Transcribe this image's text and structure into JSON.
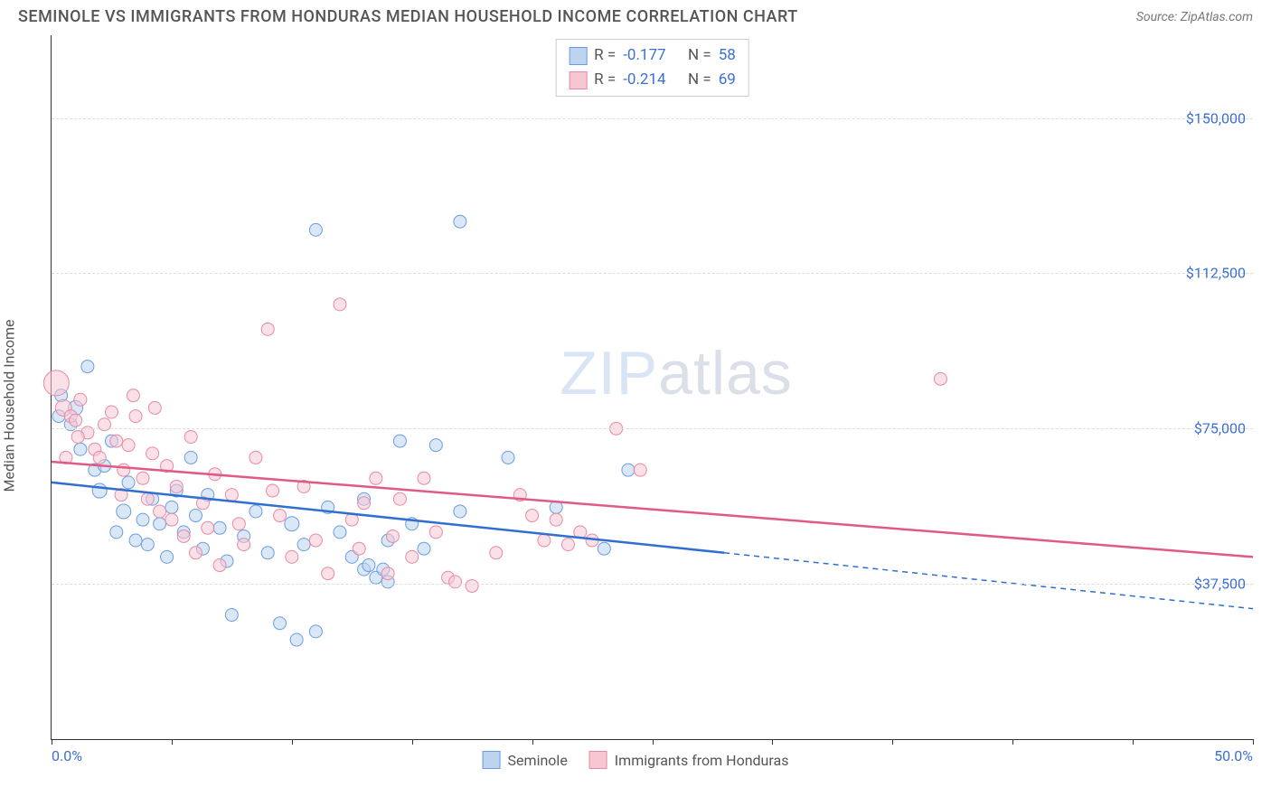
{
  "header": {
    "title": "SEMINOLE VS IMMIGRANTS FROM HONDURAS MEDIAN HOUSEHOLD INCOME CORRELATION CHART",
    "source": "Source: ZipAtlas.com"
  },
  "chart": {
    "type": "scatter",
    "ylabel": "Median Household Income",
    "watermark_a": "ZIP",
    "watermark_b": "atlas",
    "xlim": [
      0,
      50
    ],
    "ylim": [
      0,
      170000
    ],
    "xtick_label_min": "0.0%",
    "xtick_label_max": "50.0%",
    "xtick_positions_pct": [
      0,
      10,
      20,
      30,
      40,
      50,
      60,
      70,
      80,
      90,
      100
    ],
    "ytick_labels": [
      "$37,500",
      "$75,000",
      "$112,500",
      "$150,000"
    ],
    "ytick_values": [
      37500,
      75000,
      112500,
      150000
    ],
    "grid_color": "#dddddd",
    "axis_color": "#333333",
    "label_color": "#3b6fd6",
    "background_color": "#ffffff",
    "stats": [
      {
        "swatch_fill": "#bcd4f0",
        "swatch_stroke": "#6b9de0",
        "r_label": "R =",
        "r": "-0.177",
        "n_label": "N =",
        "n": "58"
      },
      {
        "swatch_fill": "#f6c7d3",
        "swatch_stroke": "#e88aa4",
        "r_label": "R =",
        "r": "-0.214",
        "n_label": "N =",
        "n": "69"
      }
    ],
    "legend": [
      {
        "swatch_fill": "#bcd4f0",
        "swatch_stroke": "#6b9de0",
        "label": "Seminole"
      },
      {
        "swatch_fill": "#f6c7d3",
        "swatch_stroke": "#e88aa4",
        "label": "Immigrants from Honduras"
      }
    ],
    "series": [
      {
        "name": "Seminole",
        "fill": "#bcd4f0",
        "stroke": "#6b9de0",
        "fill_opacity": 0.55,
        "trend_color": "#2f6fd0",
        "trend_width": 2.5,
        "trend_solid": {
          "x1": 0,
          "y1": 62000,
          "x2": 28,
          "y2": 45000
        },
        "trend_dash": {
          "x1": 28,
          "y1": 45000,
          "x2": 50,
          "y2": 31500
        },
        "points": [
          {
            "x": 0.3,
            "y": 78000,
            "r": 7
          },
          {
            "x": 0.4,
            "y": 83000,
            "r": 7
          },
          {
            "x": 0.8,
            "y": 76000,
            "r": 7
          },
          {
            "x": 1.0,
            "y": 80000,
            "r": 8
          },
          {
            "x": 1.2,
            "y": 70000,
            "r": 7
          },
          {
            "x": 1.5,
            "y": 90000,
            "r": 7
          },
          {
            "x": 1.8,
            "y": 65000,
            "r": 7
          },
          {
            "x": 2.0,
            "y": 60000,
            "r": 8
          },
          {
            "x": 2.2,
            "y": 66000,
            "r": 7
          },
          {
            "x": 2.5,
            "y": 72000,
            "r": 7
          },
          {
            "x": 2.7,
            "y": 50000,
            "r": 7
          },
          {
            "x": 3.0,
            "y": 55000,
            "r": 8
          },
          {
            "x": 3.2,
            "y": 62000,
            "r": 7
          },
          {
            "x": 3.5,
            "y": 48000,
            "r": 7
          },
          {
            "x": 3.8,
            "y": 53000,
            "r": 7
          },
          {
            "x": 4.0,
            "y": 47000,
            "r": 7
          },
          {
            "x": 4.2,
            "y": 58000,
            "r": 7
          },
          {
            "x": 4.5,
            "y": 52000,
            "r": 7
          },
          {
            "x": 4.8,
            "y": 44000,
            "r": 7
          },
          {
            "x": 5.0,
            "y": 56000,
            "r": 7
          },
          {
            "x": 5.2,
            "y": 60000,
            "r": 7
          },
          {
            "x": 5.5,
            "y": 50000,
            "r": 7
          },
          {
            "x": 5.8,
            "y": 68000,
            "r": 7
          },
          {
            "x": 6.0,
            "y": 54000,
            "r": 7
          },
          {
            "x": 6.3,
            "y": 46000,
            "r": 7
          },
          {
            "x": 6.5,
            "y": 59000,
            "r": 7
          },
          {
            "x": 7.0,
            "y": 51000,
            "r": 7
          },
          {
            "x": 7.3,
            "y": 43000,
            "r": 7
          },
          {
            "x": 7.5,
            "y": 30000,
            "r": 7
          },
          {
            "x": 8.0,
            "y": 49000,
            "r": 7
          },
          {
            "x": 8.5,
            "y": 55000,
            "r": 7
          },
          {
            "x": 9.0,
            "y": 45000,
            "r": 7
          },
          {
            "x": 9.5,
            "y": 28000,
            "r": 7
          },
          {
            "x": 10.0,
            "y": 52000,
            "r": 8
          },
          {
            "x": 10.2,
            "y": 24000,
            "r": 7
          },
          {
            "x": 10.5,
            "y": 47000,
            "r": 7
          },
          {
            "x": 11.0,
            "y": 123000,
            "r": 7
          },
          {
            "x": 11.0,
            "y": 26000,
            "r": 7
          },
          {
            "x": 11.5,
            "y": 56000,
            "r": 7
          },
          {
            "x": 12.0,
            "y": 50000,
            "r": 7
          },
          {
            "x": 12.5,
            "y": 44000,
            "r": 7
          },
          {
            "x": 13.0,
            "y": 58000,
            "r": 7
          },
          {
            "x": 13.0,
            "y": 41000,
            "r": 7
          },
          {
            "x": 13.2,
            "y": 42000,
            "r": 7
          },
          {
            "x": 13.5,
            "y": 39000,
            "r": 7
          },
          {
            "x": 13.8,
            "y": 41000,
            "r": 7
          },
          {
            "x": 14.0,
            "y": 48000,
            "r": 7
          },
          {
            "x": 14.0,
            "y": 38000,
            "r": 7
          },
          {
            "x": 14.5,
            "y": 72000,
            "r": 7
          },
          {
            "x": 15.0,
            "y": 52000,
            "r": 7
          },
          {
            "x": 15.5,
            "y": 46000,
            "r": 7
          },
          {
            "x": 16.0,
            "y": 71000,
            "r": 7
          },
          {
            "x": 17.0,
            "y": 125000,
            "r": 7
          },
          {
            "x": 17.0,
            "y": 55000,
            "r": 7
          },
          {
            "x": 19.0,
            "y": 68000,
            "r": 7
          },
          {
            "x": 21.0,
            "y": 56000,
            "r": 7
          },
          {
            "x": 23.0,
            "y": 46000,
            "r": 7
          },
          {
            "x": 24.0,
            "y": 65000,
            "r": 7
          }
        ]
      },
      {
        "name": "Immigrants from Honduras",
        "fill": "#f6c7d3",
        "stroke": "#e88aa4",
        "fill_opacity": 0.55,
        "trend_color": "#e05a85",
        "trend_width": 2.5,
        "trend_solid": {
          "x1": 0,
          "y1": 67000,
          "x2": 50,
          "y2": 44000
        },
        "trend_dash": null,
        "points": [
          {
            "x": 0.2,
            "y": 86000,
            "r": 14
          },
          {
            "x": 0.5,
            "y": 80000,
            "r": 9
          },
          {
            "x": 0.8,
            "y": 78000,
            "r": 7
          },
          {
            "x": 1.0,
            "y": 77000,
            "r": 7
          },
          {
            "x": 1.2,
            "y": 82000,
            "r": 7
          },
          {
            "x": 1.5,
            "y": 74000,
            "r": 7
          },
          {
            "x": 1.8,
            "y": 70000,
            "r": 7
          },
          {
            "x": 2.0,
            "y": 68000,
            "r": 7
          },
          {
            "x": 2.2,
            "y": 76000,
            "r": 7
          },
          {
            "x": 2.5,
            "y": 79000,
            "r": 7
          },
          {
            "x": 2.7,
            "y": 72000,
            "r": 7
          },
          {
            "x": 3.0,
            "y": 65000,
            "r": 7
          },
          {
            "x": 3.2,
            "y": 71000,
            "r": 7
          },
          {
            "x": 3.5,
            "y": 78000,
            "r": 7
          },
          {
            "x": 3.8,
            "y": 63000,
            "r": 7
          },
          {
            "x": 4.0,
            "y": 58000,
            "r": 7
          },
          {
            "x": 4.2,
            "y": 69000,
            "r": 7
          },
          {
            "x": 4.5,
            "y": 55000,
            "r": 7
          },
          {
            "x": 4.8,
            "y": 66000,
            "r": 7
          },
          {
            "x": 5.0,
            "y": 53000,
            "r": 7
          },
          {
            "x": 5.2,
            "y": 61000,
            "r": 7
          },
          {
            "x": 5.5,
            "y": 49000,
            "r": 7
          },
          {
            "x": 5.8,
            "y": 73000,
            "r": 7
          },
          {
            "x": 6.0,
            "y": 45000,
            "r": 7
          },
          {
            "x": 6.3,
            "y": 57000,
            "r": 7
          },
          {
            "x": 6.5,
            "y": 51000,
            "r": 7
          },
          {
            "x": 7.0,
            "y": 42000,
            "r": 7
          },
          {
            "x": 7.5,
            "y": 59000,
            "r": 7
          },
          {
            "x": 8.0,
            "y": 47000,
            "r": 7
          },
          {
            "x": 8.5,
            "y": 68000,
            "r": 7
          },
          {
            "x": 9.0,
            "y": 99000,
            "r": 7
          },
          {
            "x": 9.5,
            "y": 54000,
            "r": 7
          },
          {
            "x": 10.0,
            "y": 44000,
            "r": 7
          },
          {
            "x": 10.5,
            "y": 61000,
            "r": 7
          },
          {
            "x": 11.0,
            "y": 48000,
            "r": 7
          },
          {
            "x": 11.5,
            "y": 40000,
            "r": 7
          },
          {
            "x": 12.0,
            "y": 105000,
            "r": 7
          },
          {
            "x": 12.5,
            "y": 53000,
            "r": 7
          },
          {
            "x": 13.0,
            "y": 57000,
            "r": 7
          },
          {
            "x": 13.5,
            "y": 63000,
            "r": 7
          },
          {
            "x": 14.0,
            "y": 40000,
            "r": 7
          },
          {
            "x": 14.2,
            "y": 49000,
            "r": 7
          },
          {
            "x": 14.5,
            "y": 58000,
            "r": 7
          },
          {
            "x": 15.0,
            "y": 44000,
            "r": 7
          },
          {
            "x": 15.5,
            "y": 63000,
            "r": 7
          },
          {
            "x": 16.0,
            "y": 50000,
            "r": 7
          },
          {
            "x": 16.5,
            "y": 39000,
            "r": 7
          },
          {
            "x": 16.8,
            "y": 38000,
            "r": 7
          },
          {
            "x": 17.5,
            "y": 37000,
            "r": 7
          },
          {
            "x": 18.5,
            "y": 45000,
            "r": 7
          },
          {
            "x": 19.5,
            "y": 59000,
            "r": 7
          },
          {
            "x": 20.0,
            "y": 54000,
            "r": 7
          },
          {
            "x": 20.5,
            "y": 48000,
            "r": 7
          },
          {
            "x": 21.0,
            "y": 53000,
            "r": 7
          },
          {
            "x": 21.5,
            "y": 47000,
            "r": 7
          },
          {
            "x": 22.0,
            "y": 50000,
            "r": 7
          },
          {
            "x": 22.5,
            "y": 48000,
            "r": 7
          },
          {
            "x": 23.5,
            "y": 75000,
            "r": 7
          },
          {
            "x": 24.5,
            "y": 65000,
            "r": 7
          },
          {
            "x": 37.0,
            "y": 87000,
            "r": 7
          },
          {
            "x": 4.3,
            "y": 80000,
            "r": 7
          },
          {
            "x": 3.4,
            "y": 83000,
            "r": 7
          },
          {
            "x": 2.9,
            "y": 59000,
            "r": 7
          },
          {
            "x": 6.8,
            "y": 64000,
            "r": 7
          },
          {
            "x": 7.8,
            "y": 52000,
            "r": 7
          },
          {
            "x": 9.2,
            "y": 60000,
            "r": 7
          },
          {
            "x": 1.1,
            "y": 73000,
            "r": 7
          },
          {
            "x": 0.6,
            "y": 68000,
            "r": 7
          },
          {
            "x": 12.8,
            "y": 46000,
            "r": 7
          }
        ]
      }
    ]
  }
}
